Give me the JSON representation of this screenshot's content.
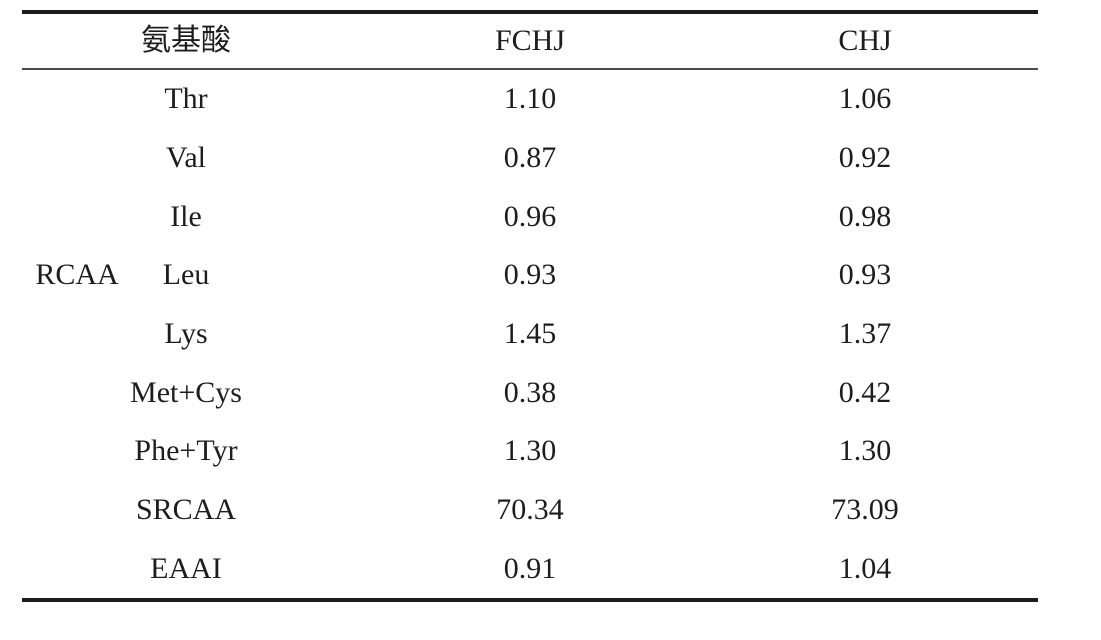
{
  "table": {
    "headers": {
      "amino_acid": "氨基酸",
      "fchj": "FCHJ",
      "chj": "CHJ"
    },
    "group_label": "RCAA",
    "rows": [
      {
        "name": "Thr",
        "fchj": "1.10",
        "chj": "1.06"
      },
      {
        "name": "Val",
        "fchj": "0.87",
        "chj": "0.92"
      },
      {
        "name": "Ile",
        "fchj": "0.96",
        "chj": "0.98"
      },
      {
        "name": "Leu",
        "fchj": "0.93",
        "chj": "0.93"
      },
      {
        "name": "Lys",
        "fchj": "1.45",
        "chj": "1.37"
      },
      {
        "name": "Met+Cys",
        "fchj": "0.38",
        "chj": "0.42"
      },
      {
        "name": "Phe+Tyr",
        "fchj": "1.30",
        "chj": "1.30"
      },
      {
        "name": "SRCAA",
        "fchj": "70.34",
        "chj": "73.09"
      },
      {
        "name": "EAAI",
        "fchj": "0.91",
        "chj": "1.04"
      }
    ]
  }
}
